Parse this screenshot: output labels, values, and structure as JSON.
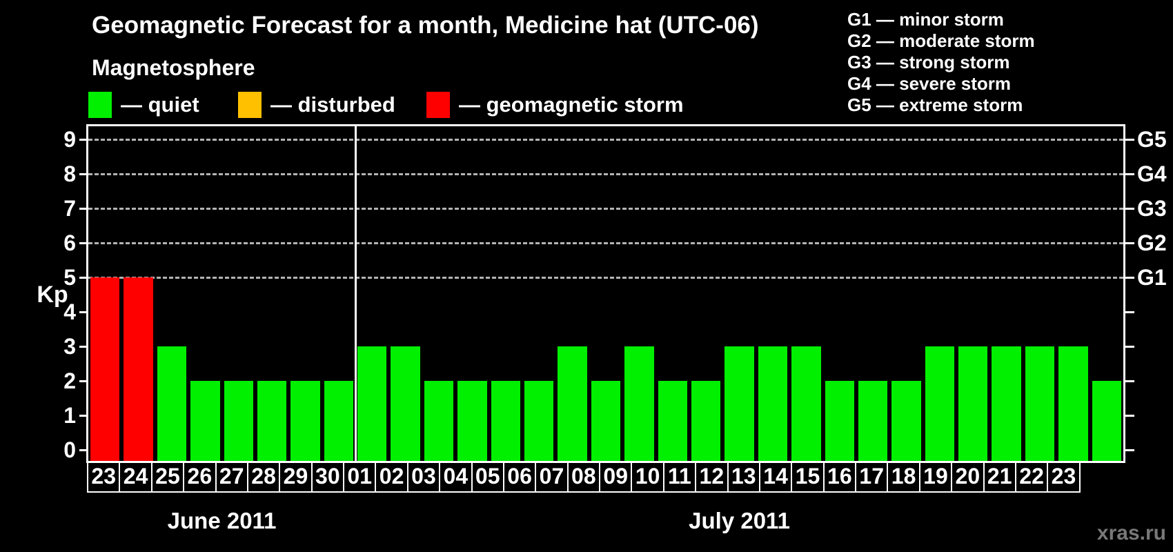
{
  "header": {
    "title": "Geomagnetic Forecast for a month, Medicine hat (UTC-06)",
    "subtitle": "Magnetosphere"
  },
  "legend": {
    "items": [
      {
        "name": "quiet",
        "label": "— quiet",
        "color": "#00f000"
      },
      {
        "name": "disturbed",
        "label": "— disturbed",
        "color": "#ffc000"
      },
      {
        "name": "storm",
        "label": "— geomagnetic storm",
        "color": "#ff0000"
      }
    ]
  },
  "g_scale": {
    "items": [
      "G1 — minor storm",
      "G2 — moderate storm",
      "G3 — strong storm",
      "G4 — severe storm",
      "G5 — extreme storm"
    ]
  },
  "axes": {
    "y_label": "Kp",
    "y_ticks": [
      0,
      1,
      2,
      3,
      4,
      5,
      6,
      7,
      8,
      9
    ],
    "grid_levels": [
      5,
      6,
      7,
      8,
      9
    ],
    "right_labels": [
      {
        "kp": 5,
        "label": "G1"
      },
      {
        "kp": 6,
        "label": "G2"
      },
      {
        "kp": 7,
        "label": "G3"
      },
      {
        "kp": 8,
        "label": "G4"
      },
      {
        "kp": 9,
        "label": "G5"
      }
    ]
  },
  "watermark": "xras.ru",
  "chart_data": {
    "type": "bar",
    "title": "Geomagnetic Forecast for a month, Medicine hat (UTC-06)",
    "ylabel": "Kp",
    "ylim": [
      0,
      9
    ],
    "grid": "dashed horizontal lines at Kp 5-9 only",
    "legend_position": "top-left",
    "colors": {
      "quiet": "#00f000",
      "disturbed": "#ffc000",
      "storm": "#ff0000"
    },
    "color_rule": "kp >= 5 storm (red), kp == 4 disturbed (orange), kp <= 3 quiet (green)",
    "groups": [
      {
        "label": "June 2011",
        "days": [
          "23",
          "24",
          "25",
          "26",
          "27",
          "28",
          "29",
          "30"
        ],
        "kp": [
          5,
          5,
          3,
          2,
          2,
          2,
          2,
          2
        ]
      },
      {
        "label": "July 2011",
        "days": [
          "01",
          "02",
          "03",
          "04",
          "05",
          "06",
          "07",
          "08",
          "09",
          "10",
          "11",
          "12",
          "13",
          "14",
          "15",
          "16",
          "17",
          "18",
          "19",
          "20",
          "21",
          "22",
          "23"
        ],
        "kp": [
          3,
          3,
          2,
          2,
          2,
          2,
          3,
          2,
          3,
          2,
          2,
          3,
          3,
          3,
          2,
          2,
          2,
          3,
          3,
          3,
          3,
          3,
          2
        ]
      }
    ]
  }
}
